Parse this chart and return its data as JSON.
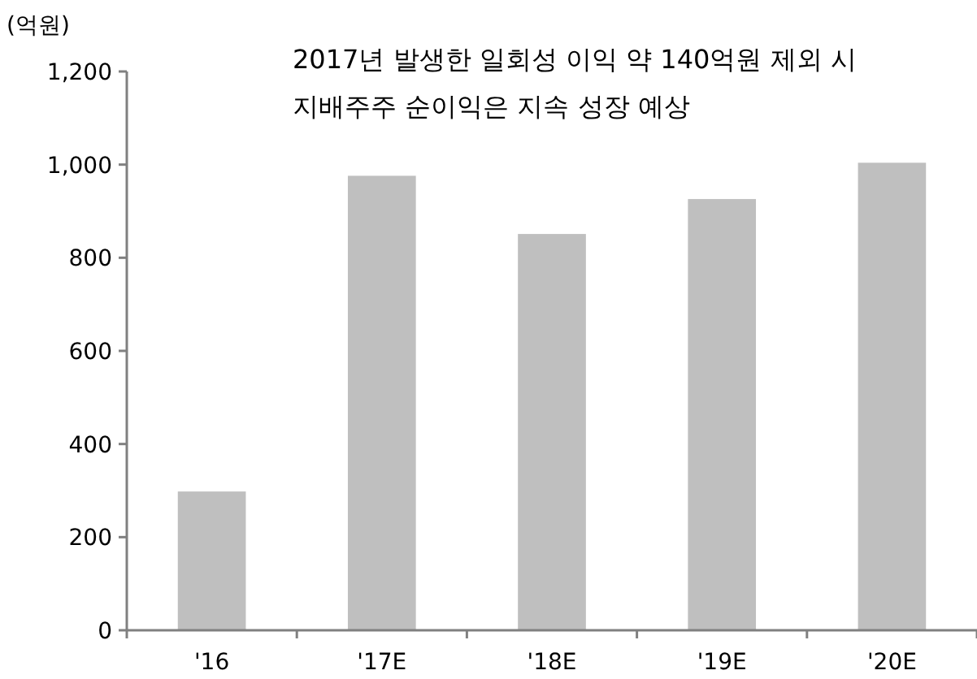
{
  "chart_data": {
    "type": "bar",
    "ylabel": "(억원)",
    "title": "2017년 발생한 일회성 이익 약 140억원 제외 시 지배주주 순이익은 지속 성장 예상",
    "categories": [
      "'16",
      "'17E",
      "'18E",
      "'19E",
      "'20E"
    ],
    "values": [
      298,
      976,
      851,
      926,
      1004
    ],
    "color": "#bfbfbf",
    "ylim": [
      0,
      1200
    ],
    "yticks": [
      0,
      {
        "value": 200,
        "label": "200"
      },
      {
        "value": 400,
        "label": "400"
      },
      {
        "value": 600,
        "label": "600"
      },
      {
        "value": 800,
        "label": "800"
      },
      {
        "value": 1000,
        "label": "1,000"
      },
      {
        "value": 1200,
        "label": "1,200"
      }
    ],
    "grid": false
  }
}
